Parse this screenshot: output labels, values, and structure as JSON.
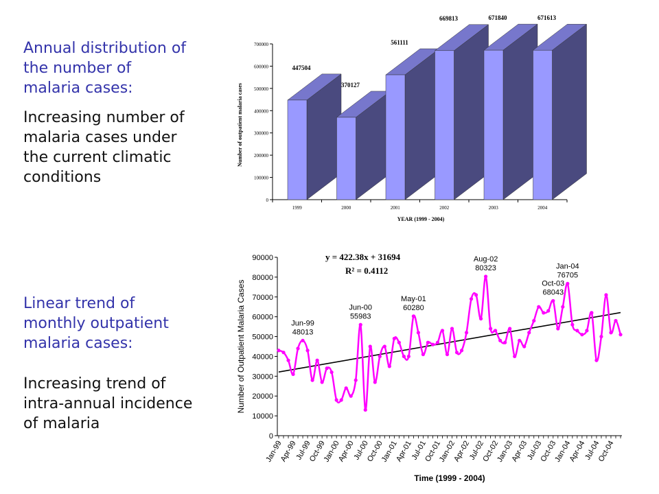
{
  "slide": {
    "top_heading": "Annual distribution of\nthe number of\nmalaria cases:",
    "top_body": "Increasing number of\nmalaria cases under\nthe current climatic\nconditions",
    "bottom_heading": "Linear trend of\nmonthly outpatient\nmalaria cases:",
    "bottom_body": "Increasing trend of\nintra-annual incidence\nof malaria"
  },
  "chart_data": [
    {
      "type": "bar",
      "title": "",
      "xlabel": "YEAR (1999 - 2004)",
      "ylabel": "Number of outpatient malaria cases",
      "categories": [
        "1999",
        "2000",
        "2001",
        "2002",
        "2003",
        "2004"
      ],
      "values": [
        447504,
        370127,
        561111,
        669813,
        671840,
        671613
      ],
      "data_labels": [
        "447504",
        "370127",
        "561111",
        "669813",
        "671840",
        "671613"
      ],
      "ylim": [
        0,
        700000
      ],
      "yticks": [
        0,
        100000,
        200000,
        300000,
        400000,
        500000,
        600000,
        700000
      ],
      "ytick_labels": [
        "0",
        "100000",
        "200000",
        "300000",
        "400000",
        "500000",
        "600000",
        "700000"
      ],
      "style": "3d",
      "colors": {
        "front": "#9999ff",
        "side": "#4a4a7f",
        "top": "#7777cc"
      }
    },
    {
      "type": "line",
      "title": "",
      "xlabel": "Time (1999 - 2004)",
      "ylabel": "Number of Outpatient Malaria Cases",
      "ylim": [
        0,
        90000
      ],
      "yticks": [
        0,
        10000,
        20000,
        30000,
        40000,
        50000,
        60000,
        70000,
        80000,
        90000
      ],
      "ytick_labels": [
        "0",
        "10000",
        "20000",
        "30000",
        "40000",
        "50000",
        "60000",
        "70000",
        "80000",
        "90000"
      ],
      "x_tick_labels": [
        "Jan-99",
        "Apr-99",
        "Jul-99",
        "Oct-99",
        "Jan-00",
        "Apr-00",
        "Jul-00",
        "Oct-00",
        "Jan-01",
        "Apr-01",
        "Jul-01",
        "Oct-01",
        "Jan-02",
        "Apr-02",
        "Jul-02",
        "Oct-02",
        "Jan-03",
        "Apr-03",
        "Jul-03",
        "Oct-03",
        "Jan-04",
        "Apr-04",
        "Jul-04",
        "Oct-04"
      ],
      "series": [
        {
          "values": [
            43000,
            42000,
            38000,
            31000,
            44000,
            48013,
            43000,
            28000,
            38000,
            27000,
            34000,
            32000,
            18000,
            18000,
            24000,
            20000,
            28000,
            55983,
            13000,
            45000,
            27000,
            40000,
            45000,
            35000,
            49000,
            47000,
            40000,
            40000,
            60280,
            52000,
            41000,
            47000,
            46000,
            47000,
            53000,
            41000,
            54000,
            42000,
            43000,
            52000,
            69000,
            71000,
            59000,
            80323,
            54000,
            53000,
            48000,
            47000,
            54000,
            40000,
            48000,
            45000,
            52000,
            58000,
            65000,
            62000,
            63000,
            68043,
            54000,
            65000,
            76705,
            56000,
            53000,
            51000,
            53000,
            62000,
            38000,
            50000,
            71000,
            52000,
            58000,
            51000
          ],
          "color": "#ff00ff"
        }
      ],
      "trendline": {
        "equation": "y = 422.38x + 31694",
        "r2": "R² = 0.4112",
        "slope": 422.38,
        "intercept": 31694
      },
      "annotations": [
        {
          "month": "Jun-99",
          "value": "48013",
          "index": 5
        },
        {
          "month": "Jun-00",
          "value": "55983",
          "index": 17
        },
        {
          "month": "May-01",
          "value": "60280",
          "index": 28
        },
        {
          "month": "Aug-02",
          "value": "80323",
          "index": 43
        },
        {
          "month": "Oct-03",
          "value": "68043",
          "index": 57
        },
        {
          "month": "Jan-04",
          "value": "76705",
          "index": 60
        }
      ]
    }
  ]
}
